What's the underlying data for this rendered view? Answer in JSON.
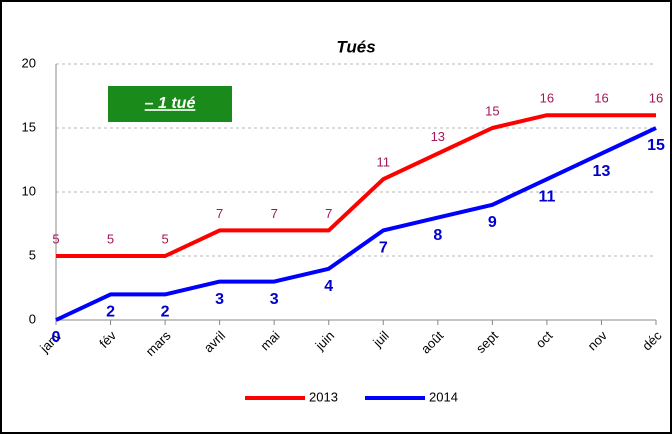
{
  "chart_data": {
    "type": "line",
    "title": "Tués",
    "annotation": "– 1 tué",
    "categories": [
      "janv",
      "fév",
      "mars",
      "avril",
      "mai",
      "juin",
      "juil",
      "août",
      "sept",
      "oct",
      "nov",
      "déc"
    ],
    "series": [
      {
        "name": "2013",
        "color": "#ff0000",
        "label_color": "#a0185a",
        "values": [
          5,
          5,
          5,
          7,
          7,
          7,
          11,
          13,
          15,
          16,
          16,
          16
        ]
      },
      {
        "name": "2014",
        "color": "#0000ff",
        "label_color": "#0000cc",
        "values": [
          0,
          2,
          2,
          3,
          3,
          4,
          7,
          8,
          9,
          11,
          13,
          15
        ]
      }
    ],
    "ylim": [
      0,
      20
    ],
    "yticks": [
      0,
      5,
      10,
      15,
      20
    ],
    "grid": true,
    "legend": "bottom"
  }
}
